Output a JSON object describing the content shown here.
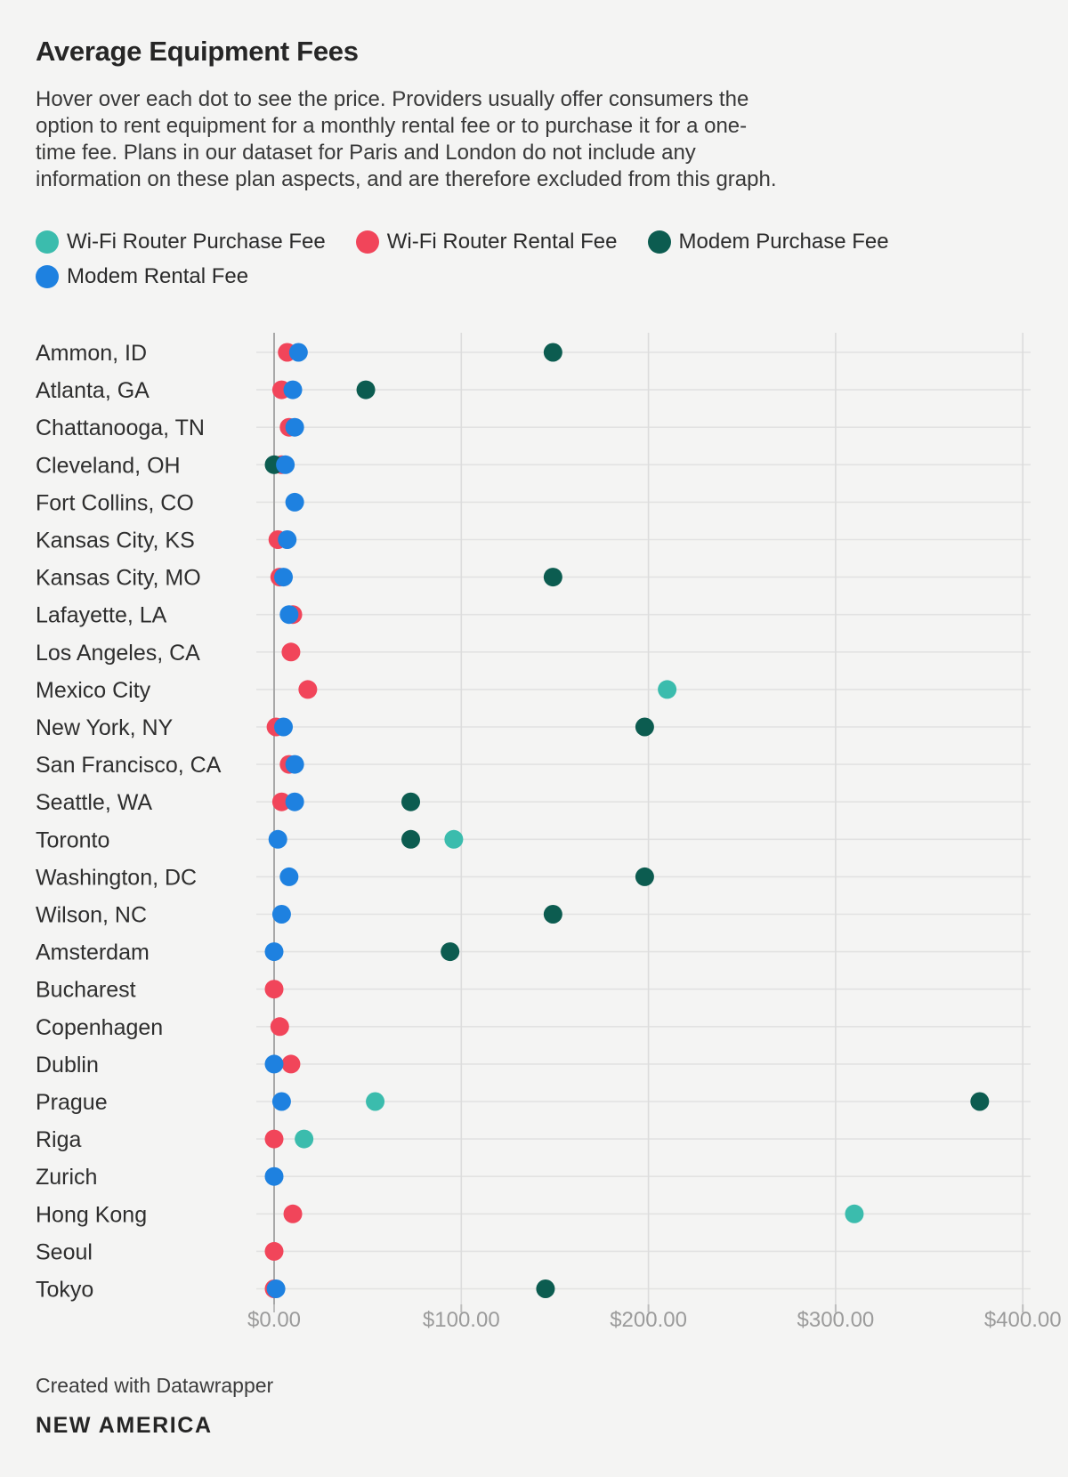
{
  "header": {
    "title": "Average Equipment Fees",
    "description_lines": [
      "Hover over each dot to see the price. Providers usually offer consumers the",
      "option to rent equipment for a monthly rental fee or to purchase it for a one-",
      "time fee. Plans in our dataset for Paris and London do not include any",
      "information on these plan aspects, and are therefore excluded from this graph."
    ]
  },
  "legend": {
    "items": [
      {
        "label": "Wi-Fi Router Purchase Fee",
        "color": "#3bbcad"
      },
      {
        "label": "Wi-Fi Router Rental Fee",
        "color": "#f1455a"
      },
      {
        "label": "Modem Purchase Fee",
        "color": "#0c5c50"
      },
      {
        "label": "Modem Rental Fee",
        "color": "#1e81e0"
      }
    ]
  },
  "chart_data": {
    "type": "scatter",
    "subtype": "horizontal-dot-plot",
    "title": "Average Equipment Fees",
    "xlabel": "",
    "ylabel": "",
    "unit": "USD",
    "grid": true,
    "x_axis": {
      "ticks": [
        0,
        100,
        200,
        300,
        400
      ],
      "tick_labels": [
        "$0.00",
        "$100.00",
        "$200.00",
        "$300.00",
        "$400.00"
      ],
      "range": [
        0,
        404
      ]
    },
    "categories": [
      "Ammon, ID",
      "Atlanta, GA",
      "Chattanooga, TN",
      "Cleveland, OH",
      "Fort Collins, CO",
      "Kansas City, KS",
      "Kansas City, MO",
      "Lafayette, LA",
      "Los Angeles, CA",
      "Mexico City",
      "New York, NY",
      "San Francisco, CA",
      "Seattle, WA",
      "Toronto",
      "Washington, DC",
      "Wilson, NC",
      "Amsterdam",
      "Bucharest",
      "Copenhagen",
      "Dublin",
      "Prague",
      "Riga",
      "Zurich",
      "Hong Kong",
      "Seoul",
      "Tokyo"
    ],
    "series": [
      {
        "name": "Wi-Fi Router Purchase Fee",
        "color": "#3bbcad",
        "values": [
          null,
          null,
          null,
          null,
          null,
          null,
          null,
          null,
          null,
          210,
          null,
          null,
          null,
          96,
          null,
          null,
          null,
          null,
          null,
          null,
          54,
          16,
          null,
          310,
          null,
          null
        ]
      },
      {
        "name": "Wi-Fi Router Rental Fee",
        "color": "#f1455a",
        "values": [
          7,
          4,
          8,
          4,
          null,
          2,
          3,
          10,
          9,
          18,
          1,
          8,
          4,
          null,
          null,
          null,
          null,
          0,
          3,
          9,
          null,
          0,
          null,
          10,
          0,
          0
        ]
      },
      {
        "name": "Modem Purchase Fee",
        "color": "#0c5c50",
        "values": [
          149,
          49,
          null,
          0,
          null,
          null,
          149,
          null,
          null,
          null,
          198,
          null,
          73,
          73,
          198,
          149,
          94,
          null,
          null,
          null,
          377,
          null,
          null,
          null,
          null,
          145
        ]
      },
      {
        "name": "Modem Rental Fee",
        "color": "#1e81e0",
        "values": [
          13,
          10,
          11,
          6,
          11,
          7,
          5,
          8,
          null,
          null,
          5,
          11,
          11,
          2,
          8,
          4,
          0,
          null,
          null,
          0,
          4,
          null,
          0,
          null,
          null,
          1
        ]
      }
    ]
  },
  "footer": {
    "credit": "Created with Datawrapper",
    "brand": "NEW AMERICA"
  }
}
